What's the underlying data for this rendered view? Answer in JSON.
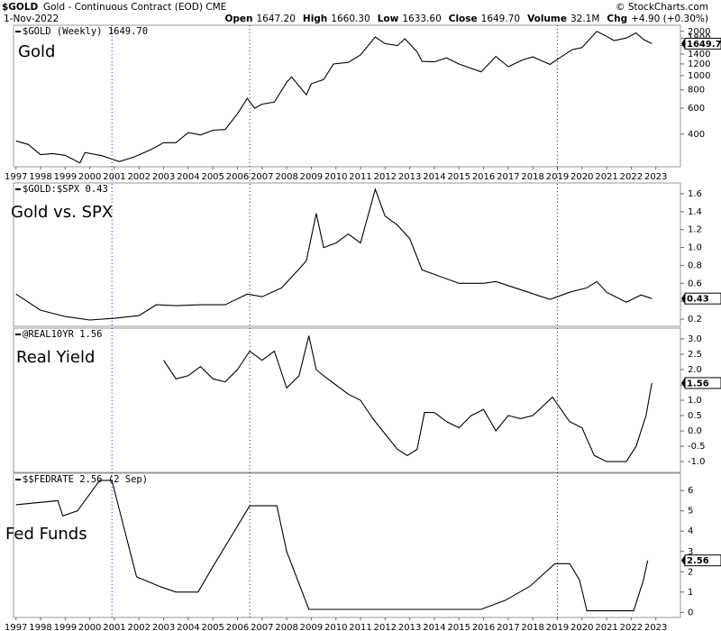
{
  "header": {
    "symbol": "$GOLD",
    "description": "Gold - Continuous Contract (EOD) CME",
    "date": "1-Nov-2022",
    "copyright": "© StockCharts.com",
    "stats": [
      {
        "label": "Open",
        "value": "1647.20"
      },
      {
        "label": "High",
        "value": "1660.30"
      },
      {
        "label": "Low",
        "value": "1633.60"
      },
      {
        "label": "Close",
        "value": "1649.70"
      },
      {
        "label": "Volume",
        "value": "32.1M"
      },
      {
        "label": "Chg",
        "value": "+4.90 (+0.30%)"
      }
    ]
  },
  "vlines": [
    2000.9,
    2006.5,
    2019.0
  ],
  "chart_data": [
    {
      "type": "line",
      "title": "Gold",
      "log": true,
      "xlim": [
        1996.9,
        2024
      ],
      "xticks": [
        1997,
        1998,
        1999,
        2000,
        2001,
        2002,
        2003,
        2004,
        2005,
        2006,
        2007,
        2008,
        2009,
        2010,
        2011,
        2012,
        2013,
        2014,
        2015,
        2016,
        2017,
        2018,
        2019,
        2020,
        2021,
        2022,
        2023
      ],
      "ylim": [
        240,
        2200
      ],
      "yticks": [
        400,
        600,
        800,
        1000,
        1200,
        1400,
        1600,
        1800,
        2000
      ],
      "series": [
        {
          "name": "$GOLD (Weekly) 1649.70",
          "color": "#000000",
          "x": [
            1997.0,
            1997.5,
            1998.0,
            1998.5,
            1999.0,
            1999.6,
            1999.8,
            2000.5,
            2001.2,
            2001.8,
            2002.5,
            2003.0,
            2003.5,
            2004.0,
            2004.5,
            2005.0,
            2005.5,
            2006.0,
            2006.4,
            2006.7,
            2007.0,
            2007.5,
            2008.0,
            2008.2,
            2008.8,
            2009.0,
            2009.5,
            2009.9,
            2010.5,
            2011.0,
            2011.6,
            2012.0,
            2012.5,
            2012.8,
            2013.3,
            2013.5,
            2014.0,
            2014.5,
            2015.0,
            2015.9,
            2016.5,
            2017.0,
            2017.6,
            2018.0,
            2018.7,
            2019.0,
            2019.6,
            2020.0,
            2020.6,
            2021.0,
            2021.3,
            2021.8,
            2022.2,
            2022.5,
            2022.84
          ],
          "values": [
            360,
            340,
            290,
            295,
            287,
            255,
            300,
            285,
            260,
            280,
            315,
            350,
            350,
            410,
            395,
            425,
            430,
            550,
            700,
            600,
            640,
            660,
            900,
            980,
            740,
            880,
            940,
            1200,
            1230,
            1380,
            1830,
            1650,
            1600,
            1780,
            1450,
            1250,
            1240,
            1320,
            1200,
            1060,
            1350,
            1150,
            1280,
            1340,
            1190,
            1290,
            1500,
            1550,
            2000,
            1850,
            1730,
            1800,
            1950,
            1760,
            1649.7
          ],
          "value_label": "1649.70"
        }
      ]
    },
    {
      "type": "line",
      "title": "Gold vs. SPX",
      "xlim": [
        1996.9,
        2024
      ],
      "ylim": [
        0.12,
        1.72
      ],
      "yticks": [
        0.2,
        0.4,
        0.6,
        0.8,
        {
          "value": 1,
          "label": "1.0"
        },
        1.2,
        1.4,
        1.6
      ],
      "series": [
        {
          "name": "$GOLD:$SPX 0.43",
          "color": "#000000",
          "x": [
            1997.0,
            1998.0,
            1999.0,
            2000.0,
            2001.0,
            2002.0,
            2002.7,
            2003.5,
            2004.5,
            2005.5,
            2006.4,
            2007.0,
            2007.8,
            2008.3,
            2008.8,
            2009.2,
            2009.5,
            2010.0,
            2010.5,
            2011.0,
            2011.6,
            2012.0,
            2012.5,
            2013.0,
            2013.5,
            2014.0,
            2015.0,
            2016.0,
            2016.5,
            2017.5,
            2018.7,
            2019.5,
            2020.2,
            2020.6,
            2021.0,
            2021.8,
            2022.4,
            2022.84
          ],
          "values": [
            0.48,
            0.3,
            0.23,
            0.19,
            0.21,
            0.24,
            0.36,
            0.35,
            0.36,
            0.36,
            0.48,
            0.45,
            0.55,
            0.7,
            0.85,
            1.38,
            1.0,
            1.05,
            1.15,
            1.05,
            1.65,
            1.35,
            1.25,
            1.1,
            0.75,
            0.7,
            0.6,
            0.6,
            0.62,
            0.53,
            0.42,
            0.5,
            0.55,
            0.62,
            0.5,
            0.39,
            0.47,
            0.43
          ],
          "value_label": "0.43"
        }
      ]
    },
    {
      "type": "line",
      "title": "Real Yield",
      "xlim": [
        1996.9,
        2024
      ],
      "ylim": [
        -1.35,
        3.35
      ],
      "yticks": [
        {
          "value": -1,
          "label": "-1.0"
        },
        -0.5,
        {
          "value": 0,
          "label": "0.0"
        },
        0.5,
        {
          "value": 1,
          "label": "1.0"
        },
        1.5,
        {
          "value": 2,
          "label": "2.0"
        },
        2.5,
        {
          "value": 3,
          "label": "3.0"
        }
      ],
      "series": [
        {
          "name": "@REAL10YR 1.56",
          "color": "#000000",
          "x": [
            2003.0,
            2003.5,
            2004.0,
            2004.5,
            2005.0,
            2005.5,
            2006.0,
            2006.5,
            2007.0,
            2007.5,
            2008.0,
            2008.5,
            2008.9,
            2009.2,
            2009.5,
            2010.0,
            2010.5,
            2011.0,
            2011.5,
            2012.0,
            2012.5,
            2012.9,
            2013.3,
            2013.6,
            2014.0,
            2014.5,
            2015.0,
            2015.5,
            2016.0,
            2016.5,
            2017.0,
            2017.5,
            2018.0,
            2018.8,
            2019.5,
            2020.0,
            2020.5,
            2021.0,
            2021.8,
            2022.2,
            2022.6,
            2022.84
          ],
          "values": [
            2.3,
            1.7,
            1.8,
            2.1,
            1.7,
            1.6,
            2.0,
            2.6,
            2.3,
            2.6,
            1.4,
            1.8,
            3.1,
            2.0,
            1.8,
            1.5,
            1.2,
            1.0,
            0.4,
            -0.1,
            -0.6,
            -0.8,
            -0.6,
            0.6,
            0.6,
            0.3,
            0.1,
            0.5,
            0.7,
            0.0,
            0.5,
            0.4,
            0.5,
            1.1,
            0.3,
            0.1,
            -0.8,
            -1.0,
            -1.0,
            -0.5,
            0.5,
            1.56
          ],
          "value_label": "1.56"
        }
      ]
    },
    {
      "type": "line",
      "title": "Fed Funds",
      "xlim": [
        1996.9,
        2024
      ],
      "xticks": [
        1997,
        1998,
        1999,
        2000,
        2001,
        2002,
        2003,
        2004,
        2005,
        2006,
        2007,
        2008,
        2009,
        2010,
        2011,
        2012,
        2013,
        2014,
        2015,
        2016,
        2017,
        2018,
        2019,
        2020,
        2021,
        2022,
        2023
      ],
      "ylim": [
        -0.25,
        6.85
      ],
      "yticks": [
        0,
        1,
        2,
        3,
        4,
        5,
        6
      ],
      "series": [
        {
          "name": "$$FEDRATE 2.56 (2 Sep)",
          "color": "#000000",
          "x": [
            1997.0,
            1998.7,
            1998.9,
            1999.5,
            2000.4,
            2000.9,
            2001.0,
            2001.9,
            2002.9,
            2003.5,
            2004.4,
            2005.0,
            2006.5,
            2007.6,
            2008.0,
            2008.9,
            2015.9,
            2016.9,
            2017.9,
            2018.9,
            2019.5,
            2019.9,
            2020.2,
            2022.1,
            2022.5,
            2022.67
          ],
          "values": [
            5.3,
            5.5,
            4.75,
            5.0,
            6.5,
            6.5,
            6.0,
            1.75,
            1.25,
            1.0,
            1.0,
            2.25,
            5.25,
            5.25,
            3.0,
            0.15,
            0.15,
            0.6,
            1.3,
            2.4,
            2.4,
            1.6,
            0.08,
            0.08,
            1.6,
            2.56
          ],
          "value_label": "2.56"
        }
      ]
    }
  ]
}
